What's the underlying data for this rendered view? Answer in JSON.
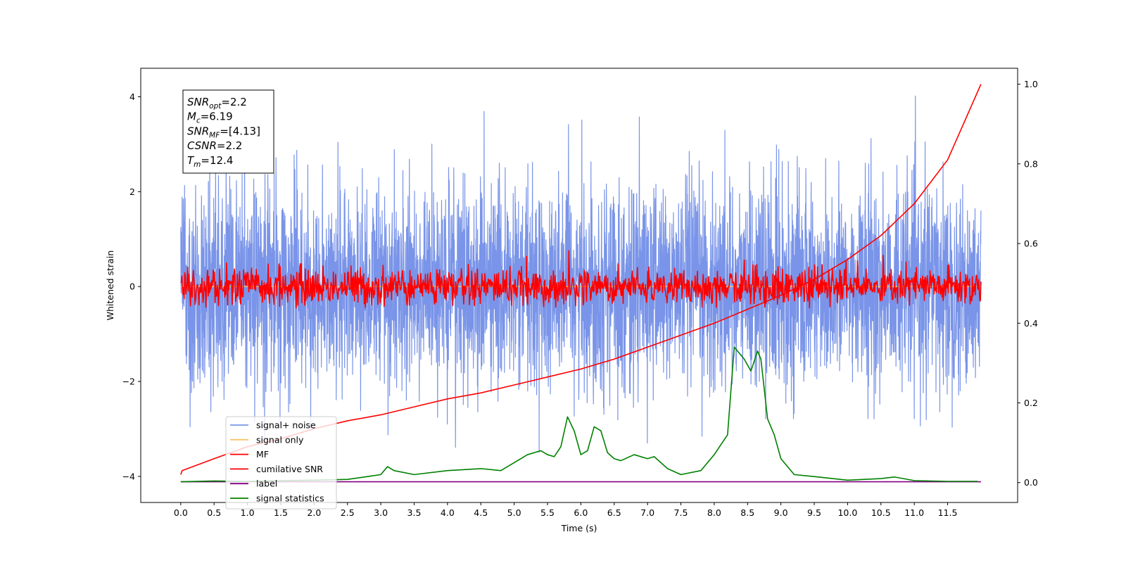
{
  "chart_data": {
    "type": "line",
    "xlabel": "Time (s)",
    "ylabel": "Whitened strain",
    "xlim": [
      -0.6,
      12.55
    ],
    "ylim": [
      -4.55,
      4.6
    ],
    "y2lim": [
      -0.05,
      1.04
    ],
    "x_ticks": [
      "0.0",
      "0.5",
      "1.0",
      "1.5",
      "2.0",
      "2.5",
      "3.0",
      "3.5",
      "4.0",
      "4.5",
      "5.0",
      "5.5",
      "6.0",
      "6.5",
      "7.0",
      "7.5",
      "8.0",
      "8.5",
      "9.0",
      "9.5",
      "10.0",
      "10.5",
      "11.0",
      "11.5"
    ],
    "y_ticks": [
      "4",
      "2",
      "0",
      "−2",
      "−4"
    ],
    "y2_ticks": [
      "1.0",
      "0.8",
      "0.6",
      "0.4",
      "0.2",
      "0.0"
    ],
    "grid": false,
    "legend_position": "lower-left",
    "annotation": [
      {
        "base": "SNR",
        "sub": "opt",
        "value": "=2.2"
      },
      {
        "base": "M",
        "sub": "c",
        "value": "=6.19"
      },
      {
        "base": "SNR",
        "sub": "MF",
        "value": "=[4.13]"
      },
      {
        "base": "CSNR",
        "sub": "",
        "value": "=2.2"
      },
      {
        "base": "T",
        "sub": "m",
        "value": "=12.4"
      }
    ],
    "series": [
      {
        "name": "signal+ noise",
        "color": "#7994e8",
        "axis": "left",
        "kind": "noise",
        "x_range": [
          0,
          12.0
        ],
        "std": 1.05,
        "min": -4.1,
        "max": 4.17
      },
      {
        "name": "signal only",
        "color": "#f6c66c",
        "axis": "left",
        "kind": "flat",
        "x_range": [
          0,
          12.0
        ],
        "value": 0.0
      },
      {
        "name": "MF",
        "color": "#ff0000",
        "axis": "left",
        "kind": "noise",
        "x_range": [
          0,
          12.0
        ],
        "std": 0.2,
        "min": -0.45,
        "max": 1.0
      },
      {
        "name": "cumilative SNR",
        "color": "#ff0000",
        "axis": "right",
        "x": [
          0.0,
          0.02,
          0.5,
          1.0,
          1.5,
          2.0,
          2.5,
          3.0,
          3.5,
          4.0,
          4.5,
          5.0,
          5.5,
          6.0,
          6.5,
          7.0,
          7.5,
          8.0,
          8.5,
          9.0,
          9.5,
          10.0,
          10.5,
          11.0,
          11.5,
          12.0
        ],
        "values": [
          0.02,
          0.03,
          0.06,
          0.09,
          0.11,
          0.135,
          0.155,
          0.17,
          0.19,
          0.21,
          0.225,
          0.245,
          0.265,
          0.285,
          0.31,
          0.34,
          0.37,
          0.4,
          0.435,
          0.47,
          0.51,
          0.56,
          0.62,
          0.7,
          0.81,
          1.0
        ]
      },
      {
        "name": "label",
        "color": "#800080",
        "axis": "right",
        "x": [
          0.0,
          12.0
        ],
        "values": [
          0.002,
          0.002
        ]
      },
      {
        "name": "signal statistics",
        "color": "#008000",
        "axis": "right",
        "x": [
          0.0,
          0.5,
          1.0,
          1.5,
          2.0,
          2.5,
          2.8,
          3.0,
          3.1,
          3.2,
          3.5,
          4.0,
          4.5,
          4.8,
          5.0,
          5.2,
          5.4,
          5.5,
          5.6,
          5.7,
          5.8,
          5.9,
          6.0,
          6.1,
          6.2,
          6.3,
          6.4,
          6.5,
          6.6,
          6.8,
          7.0,
          7.1,
          7.3,
          7.5,
          7.8,
          8.0,
          8.2,
          8.3,
          8.35,
          8.45,
          8.55,
          8.65,
          8.7,
          8.8,
          8.9,
          9.0,
          9.2,
          9.5,
          10.0,
          10.5,
          10.7,
          11.0,
          11.5,
          11.95
        ],
        "values": [
          0.002,
          0.004,
          0.003,
          0.005,
          0.006,
          0.008,
          0.015,
          0.02,
          0.04,
          0.03,
          0.02,
          0.03,
          0.035,
          0.03,
          0.05,
          0.07,
          0.08,
          0.07,
          0.065,
          0.09,
          0.165,
          0.13,
          0.07,
          0.08,
          0.14,
          0.13,
          0.075,
          0.06,
          0.055,
          0.07,
          0.06,
          0.065,
          0.035,
          0.02,
          0.03,
          0.07,
          0.12,
          0.34,
          0.33,
          0.31,
          0.28,
          0.33,
          0.31,
          0.16,
          0.12,
          0.06,
          0.02,
          0.015,
          0.006,
          0.01,
          0.014,
          0.005,
          0.003,
          0.003
        ]
      }
    ]
  }
}
